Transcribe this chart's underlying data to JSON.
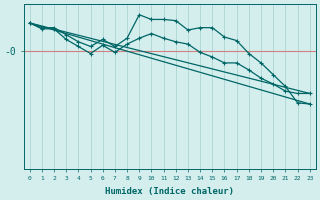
{
  "xlabel": "Humidex (Indice chaleur)",
  "ylabel": "-0",
  "bg_color": "#d4eeee",
  "line_color": "#006666",
  "grid_color": "#aed4d4",
  "hline_color": "#d08080",
  "xlim": [
    -0.5,
    23.5
  ],
  "ylim": [
    -5,
    2
  ],
  "ytick_val": 0,
  "xticks": [
    0,
    1,
    2,
    3,
    4,
    5,
    6,
    7,
    8,
    9,
    10,
    11,
    12,
    13,
    14,
    15,
    16,
    17,
    18,
    19,
    20,
    21,
    22,
    23
  ],
  "series": [
    {
      "x": [
        0,
        1,
        2,
        3,
        4,
        5,
        6,
        7,
        8,
        9,
        10,
        11,
        12,
        13,
        14,
        15,
        16,
        17,
        18,
        19,
        20,
        21,
        22,
        23
      ],
      "y": [
        1.2,
        1.0,
        1.0,
        0.7,
        0.4,
        0.2,
        0.5,
        0.2,
        0.55,
        1.55,
        1.35,
        1.35,
        1.3,
        0.9,
        1.0,
        1.0,
        0.6,
        0.45,
        -0.1,
        -0.5,
        -1.0,
        -1.5,
        -2.2,
        -2.25
      ],
      "marker": true
    },
    {
      "x": [
        0,
        1,
        2,
        3,
        4,
        5,
        6,
        7,
        8,
        9,
        10,
        11,
        12,
        13,
        14,
        15,
        16,
        17,
        18,
        19,
        20,
        21,
        22,
        23
      ],
      "y": [
        1.2,
        0.95,
        0.95,
        0.5,
        0.2,
        -0.1,
        0.25,
        -0.05,
        0.3,
        0.55,
        0.75,
        0.55,
        0.4,
        0.3,
        -0.05,
        -0.25,
        -0.5,
        -0.5,
        -0.8,
        -1.15,
        -1.4,
        -1.7,
        -1.8,
        -1.8
      ],
      "marker": true
    },
    {
      "x": [
        0,
        23
      ],
      "y": [
        1.2,
        -2.25
      ],
      "marker": false
    },
    {
      "x": [
        0,
        23
      ],
      "y": [
        1.2,
        -1.8
      ],
      "marker": false
    }
  ]
}
